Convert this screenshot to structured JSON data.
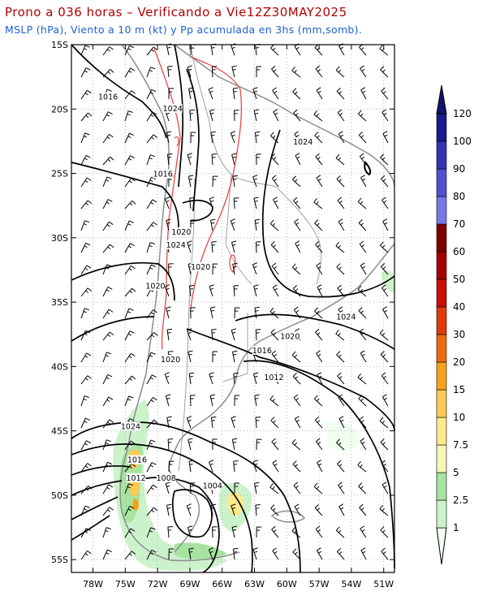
{
  "header": {
    "line1": "Prono a 036 horas – Verificando a Vie12Z30MAY2025",
    "line2": "MSLP (hPa), Viento a 10 m (kt) y Pp acumulada en 3hs (mm,somb)."
  },
  "axes": {
    "lat_labels": [
      "15S",
      "20S",
      "25S",
      "30S",
      "35S",
      "40S",
      "45S",
      "50S",
      "55S"
    ],
    "lon_labels": [
      "78W",
      "75W",
      "72W",
      "69W",
      "66W",
      "63W",
      "60W",
      "57W",
      "54W",
      "51W"
    ]
  },
  "isobar_labels": [
    {
      "text": "1016",
      "lon": -76.6,
      "lat": -19.2
    },
    {
      "text": "1024",
      "lon": -70.6,
      "lat": -20.1
    },
    {
      "text": "1024",
      "lon": -58.5,
      "lat": -22.7
    },
    {
      "text": "1016",
      "lon": -71.5,
      "lat": -25.2
    },
    {
      "text": "1020",
      "lon": -69.8,
      "lat": -29.7
    },
    {
      "text": "1024",
      "lon": -70.3,
      "lat": -30.7
    },
    {
      "text": "1020",
      "lon": -68.0,
      "lat": -32.4
    },
    {
      "text": "1020",
      "lon": -72.2,
      "lat": -33.9
    },
    {
      "text": "1024",
      "lon": -54.5,
      "lat": -36.3
    },
    {
      "text": "1020",
      "lon": -59.7,
      "lat": -37.8
    },
    {
      "text": "1016",
      "lon": -62.3,
      "lat": -38.9
    },
    {
      "text": "1020",
      "lon": -70.8,
      "lat": -39.6
    },
    {
      "text": "1012",
      "lon": -61.2,
      "lat": -41.0
    },
    {
      "text": "1024",
      "lon": -74.5,
      "lat": -44.8
    },
    {
      "text": "1016",
      "lon": -73.9,
      "lat": -47.4
    },
    {
      "text": "1012",
      "lon": -74.0,
      "lat": -48.8
    },
    {
      "text": "1008",
      "lon": -71.2,
      "lat": -48.8
    },
    {
      "text": "1004",
      "lon": -66.9,
      "lat": -49.4
    }
  ],
  "colorbar": {
    "labels": [
      "1",
      "2.5",
      "5",
      "7.5",
      "10",
      "15",
      "20",
      "30",
      "40",
      "50",
      "60",
      "70",
      "80",
      "90",
      "100",
      "120"
    ],
    "colors": [
      "#f0fff0",
      "#ccf2cc",
      "#a6e4a0",
      "#f7f7b4",
      "#fde98c",
      "#fdcb55",
      "#f6a21b",
      "#ed6a10",
      "#e03a0a",
      "#c80d03",
      "#a50000",
      "#7a0000",
      "#7878e6",
      "#5050d2",
      "#3232b4",
      "#1a1a8c"
    ],
    "top_arrow_color": "#14146e"
  }
}
